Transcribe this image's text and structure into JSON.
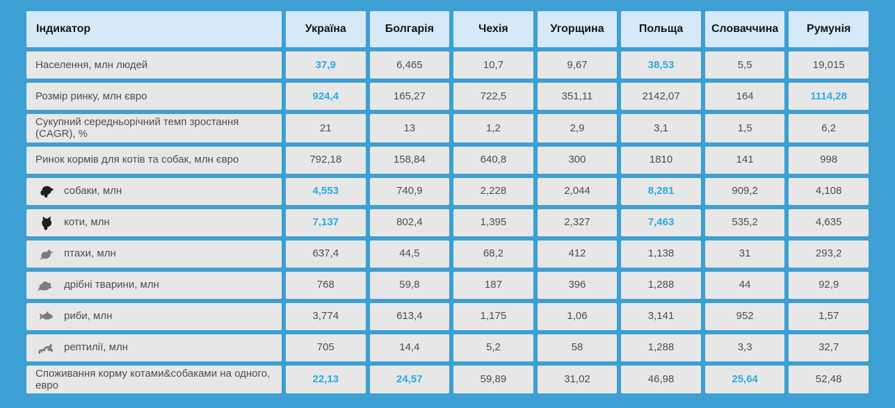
{
  "theme": {
    "background": "#3d9fd2",
    "header_bg": "#d5e9f9",
    "cell_bg": "#e7e7e7",
    "highlight_text": "#29abe2",
    "header_text": "#161616",
    "cell_text": "#4d4d4d",
    "icon_dark": "#1f1f1f",
    "icon_gray": "#7b7b7b"
  },
  "chart_data": {
    "type": "table",
    "indicator_header": "Індикатор",
    "columns": [
      "Україна",
      "Болгарія",
      "Чехія",
      "Угорщина",
      "Польща",
      "Словаччина",
      "Румунія"
    ],
    "rows": [
      {
        "label": "Населення, млн людей",
        "icon": null,
        "values": [
          "37,9",
          "6,465",
          "10,7",
          "9,67",
          "38,53",
          "5,5",
          "19,015"
        ],
        "highlight": [
          0,
          4
        ]
      },
      {
        "label": "Розмір ринку, млн євро",
        "icon": null,
        "values": [
          "924,4",
          "165,27",
          "722,5",
          "351,11",
          "2142,07",
          "164",
          "1114,28"
        ],
        "highlight": [
          0,
          6
        ]
      },
      {
        "label": "Сукупний середньорічний темп зростання (CAGR), %",
        "icon": null,
        "values": [
          "21",
          "13",
          "1,2",
          "2,9",
          "3,1",
          "1,5",
          "6,2"
        ],
        "highlight": []
      },
      {
        "label": "Ринок кормів для котів та собак, млн євро",
        "icon": null,
        "values": [
          "792,18",
          "158,84",
          "640,8",
          "300",
          "1810",
          "141",
          "998"
        ],
        "highlight": []
      },
      {
        "label": "собаки, млн",
        "icon": "dog-icon",
        "icon_tone": "dark",
        "values": [
          "4,553",
          "740,9",
          "2,228",
          "2,044",
          "8,281",
          "909,2",
          "4,108"
        ],
        "highlight": [
          0,
          4
        ]
      },
      {
        "label": "коти, млн",
        "icon": "cat-icon",
        "icon_tone": "dark",
        "values": [
          "7,137",
          "802,4",
          "1,395",
          "2,327",
          "7,463",
          "535,2",
          "4,635"
        ],
        "highlight": [
          0,
          4
        ]
      },
      {
        "label": "птахи, млн",
        "icon": "bird-icon",
        "icon_tone": "gray",
        "values": [
          "637,4",
          "44,5",
          "68,2",
          "412",
          "1,138",
          "31",
          "293,2"
        ],
        "highlight": []
      },
      {
        "label": "дрібні тварини, млн",
        "icon": "mouse-icon",
        "icon_tone": "gray",
        "values": [
          "768",
          "59,8",
          "187",
          "396",
          "1,288",
          "44",
          "92,9"
        ],
        "highlight": []
      },
      {
        "label": "риби, млн",
        "icon": "fish-icon",
        "icon_tone": "gray",
        "values": [
          "3,774",
          "613,4",
          "1,175",
          "1,06",
          "3,141",
          "952",
          "1,57"
        ],
        "highlight": []
      },
      {
        "label": "рептилії, млн",
        "icon": "reptile-icon",
        "icon_tone": "gray",
        "values": [
          "705",
          "14,4",
          "5,2",
          "58",
          "1,288",
          "3,3",
          "32,7"
        ],
        "highlight": []
      },
      {
        "label": "Споживання корму котами&собаками на одного, евро",
        "icon": null,
        "values": [
          "22,13",
          "24,57",
          "59,89",
          "31,02",
          "46,98",
          "25,64",
          "52,48"
        ],
        "highlight": [
          0,
          1,
          5
        ]
      }
    ]
  }
}
